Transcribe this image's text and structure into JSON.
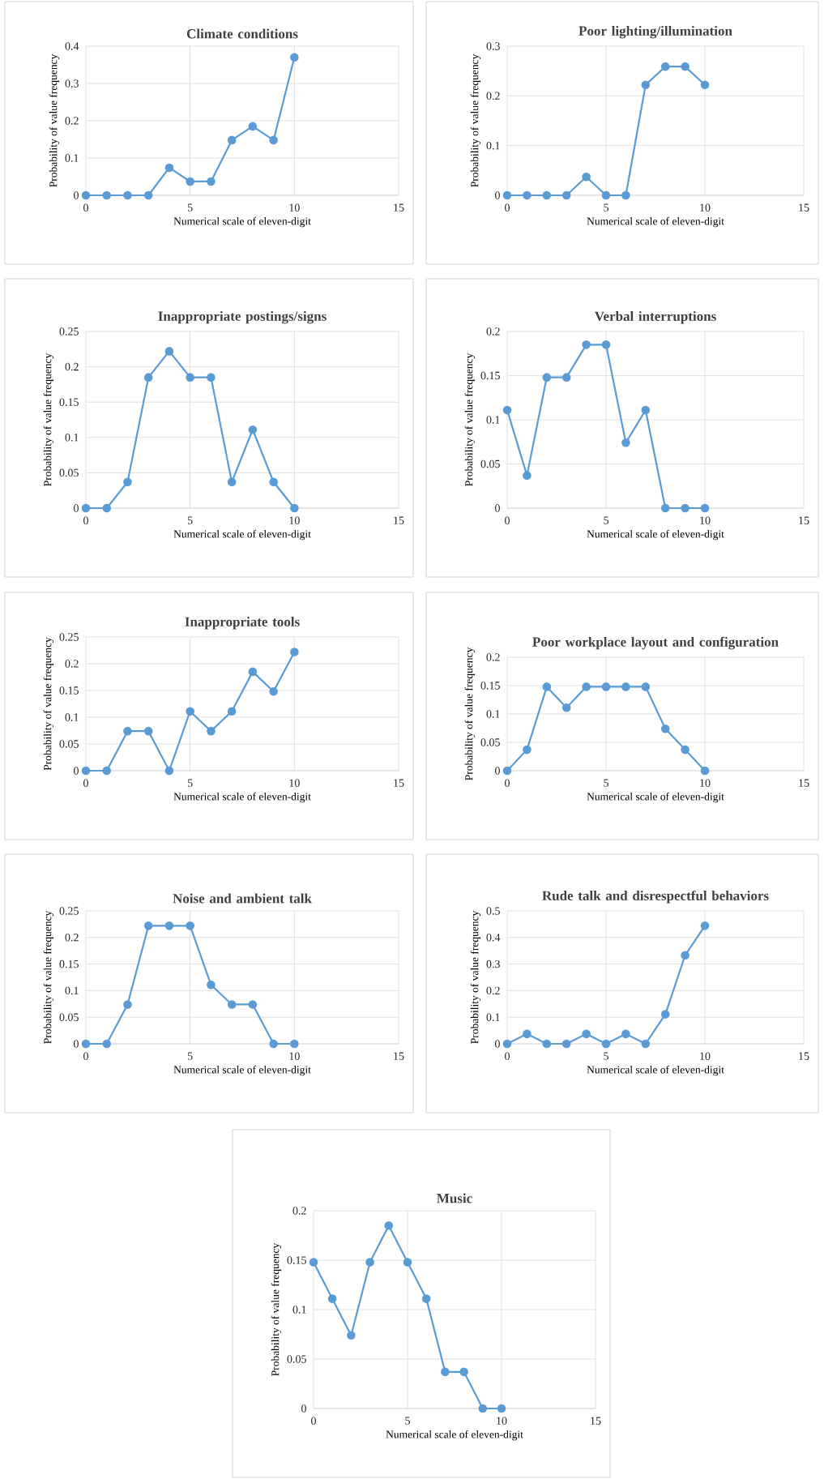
{
  "chart_data": [
    {
      "type": "line",
      "title": "Climate conditions",
      "xlabel": "Numerical scale of eleven-digit",
      "ylabel": "Probability of value frequency",
      "x": [
        0,
        1,
        2,
        3,
        4,
        5,
        6,
        7,
        8,
        9,
        10
      ],
      "values": [
        0,
        0,
        0,
        0,
        0.074,
        0.037,
        0.037,
        0.148,
        0.185,
        0.148,
        0.37
      ],
      "color": "#5b9bd5",
      "marker": "circle",
      "grid": true,
      "xlim": [
        0,
        15
      ],
      "xticks": [
        0,
        5,
        10,
        15
      ],
      "ylim": [
        0,
        0.4
      ],
      "yticks": [
        0,
        0.1,
        0.2,
        0.3,
        0.4
      ]
    },
    {
      "type": "line",
      "title": "Poor lighting/illumination",
      "xlabel": "Numerical scale of eleven-digit",
      "ylabel": "Probability of value frequency",
      "x": [
        0,
        1,
        2,
        3,
        4,
        5,
        6,
        7,
        8,
        9,
        10
      ],
      "values": [
        0,
        0,
        0,
        0,
        0.037,
        0,
        0,
        0.222,
        0.259,
        0.259,
        0.222
      ],
      "color": "#5b9bd5",
      "marker": "circle",
      "grid": true,
      "xlim": [
        0,
        15
      ],
      "xticks": [
        0,
        5,
        10,
        15
      ],
      "ylim": [
        0,
        0.3
      ],
      "yticks": [
        0,
        0.1,
        0.2,
        0.3
      ]
    },
    {
      "type": "line",
      "title": "Inappropriate postings/signs",
      "xlabel": "Numerical scale of eleven-digit",
      "ylabel": "Probability of value frequency",
      "x": [
        0,
        1,
        2,
        3,
        4,
        5,
        6,
        7,
        8,
        9,
        10
      ],
      "values": [
        0,
        0,
        0.037,
        0.185,
        0.222,
        0.185,
        0.185,
        0.037,
        0.111,
        0.037,
        0
      ],
      "color": "#5b9bd5",
      "marker": "circle",
      "grid": true,
      "xlim": [
        0,
        15
      ],
      "xticks": [
        0,
        5,
        10,
        15
      ],
      "ylim": [
        0,
        0.25
      ],
      "yticks": [
        0,
        0.05,
        0.1,
        0.15,
        0.2,
        0.25
      ]
    },
    {
      "type": "line",
      "title": "Verbal interruptions",
      "xlabel": "Numerical scale of eleven-digit",
      "ylabel": "Probability of value frequency",
      "x": [
        0,
        1,
        2,
        3,
        4,
        5,
        6,
        7,
        8,
        9,
        10
      ],
      "values": [
        0.111,
        0.037,
        0.148,
        0.148,
        0.185,
        0.185,
        0.074,
        0.111,
        0,
        0,
        0
      ],
      "color": "#5b9bd5",
      "marker": "circle",
      "grid": true,
      "xlim": [
        0,
        15
      ],
      "xticks": [
        0,
        5,
        10,
        15
      ],
      "ylim": [
        0,
        0.2
      ],
      "yticks": [
        0,
        0.05,
        0.1,
        0.15,
        0.2
      ]
    },
    {
      "type": "line",
      "title": "Inappropriate tools",
      "xlabel": "Numerical scale of eleven-digit",
      "ylabel": "Probability of value frequency",
      "x": [
        0,
        1,
        2,
        3,
        4,
        5,
        6,
        7,
        8,
        9,
        10
      ],
      "values": [
        0,
        0,
        0.074,
        0.074,
        0,
        0.111,
        0.074,
        0.111,
        0.185,
        0.148,
        0.222
      ],
      "color": "#5b9bd5",
      "marker": "circle",
      "grid": true,
      "xlim": [
        0,
        15
      ],
      "xticks": [
        0,
        5,
        10,
        15
      ],
      "ylim": [
        0,
        0.25
      ],
      "yticks": [
        0,
        0.05,
        0.1,
        0.15,
        0.2,
        0.25
      ]
    },
    {
      "type": "line",
      "title": "Poor workplace layout and configuration",
      "xlabel": "Numerical scale of eleven-digit",
      "ylabel": "Probability of value frequency",
      "x": [
        0,
        1,
        2,
        3,
        4,
        5,
        6,
        7,
        8,
        9,
        10
      ],
      "values": [
        0,
        0.037,
        0.148,
        0.111,
        0.148,
        0.148,
        0.148,
        0.148,
        0.074,
        0.037,
        0
      ],
      "color": "#5b9bd5",
      "marker": "circle",
      "grid": true,
      "xlim": [
        0,
        15
      ],
      "xticks": [
        0,
        5,
        10,
        15
      ],
      "ylim": [
        0,
        0.2
      ],
      "yticks": [
        0,
        0.05,
        0.1,
        0.15,
        0.2
      ]
    },
    {
      "type": "line",
      "title": "Noise and ambient talk",
      "xlabel": "Numerical scale of eleven-digit",
      "ylabel": "Probability of value frequency",
      "x": [
        0,
        1,
        2,
        3,
        4,
        5,
        6,
        7,
        8,
        9,
        10
      ],
      "values": [
        0,
        0,
        0.074,
        0.222,
        0.222,
        0.222,
        0.111,
        0.074,
        0.074,
        0,
        0
      ],
      "color": "#5b9bd5",
      "marker": "circle",
      "grid": true,
      "xlim": [
        0,
        15
      ],
      "xticks": [
        0,
        5,
        10,
        15
      ],
      "ylim": [
        0,
        0.25
      ],
      "yticks": [
        0,
        0.05,
        0.1,
        0.15,
        0.2,
        0.25
      ]
    },
    {
      "type": "line",
      "title": "Rude talk and disrespectful behaviors",
      "xlabel": "Numerical scale of eleven-digit",
      "ylabel": "Probability of value frequency",
      "x": [
        0,
        1,
        2,
        3,
        4,
        5,
        6,
        7,
        8,
        9,
        10
      ],
      "values": [
        0,
        0.037,
        0,
        0,
        0.037,
        0,
        0.037,
        0,
        0.111,
        0.333,
        0.444
      ],
      "color": "#5b9bd5",
      "marker": "circle",
      "grid": true,
      "xlim": [
        0,
        15
      ],
      "xticks": [
        0,
        5,
        10,
        15
      ],
      "ylim": [
        0,
        0.5
      ],
      "yticks": [
        0,
        0.1,
        0.2,
        0.3,
        0.4,
        0.5
      ]
    },
    {
      "type": "line",
      "title": "Music",
      "xlabel": "Numerical scale of eleven-digit",
      "ylabel": "Probability of value frequency",
      "x": [
        0,
        1,
        2,
        3,
        4,
        5,
        6,
        7,
        8,
        9,
        10
      ],
      "values": [
        0.148,
        0.111,
        0.074,
        0.148,
        0.185,
        0.148,
        0.111,
        0.037,
        0.037,
        0,
        0
      ],
      "color": "#5b9bd5",
      "marker": "circle",
      "grid": true,
      "xlim": [
        0,
        15
      ],
      "xticks": [
        0,
        5,
        10,
        15
      ],
      "ylim": [
        0,
        0.2
      ],
      "yticks": [
        0,
        0.05,
        0.1,
        0.15,
        0.2
      ]
    }
  ]
}
